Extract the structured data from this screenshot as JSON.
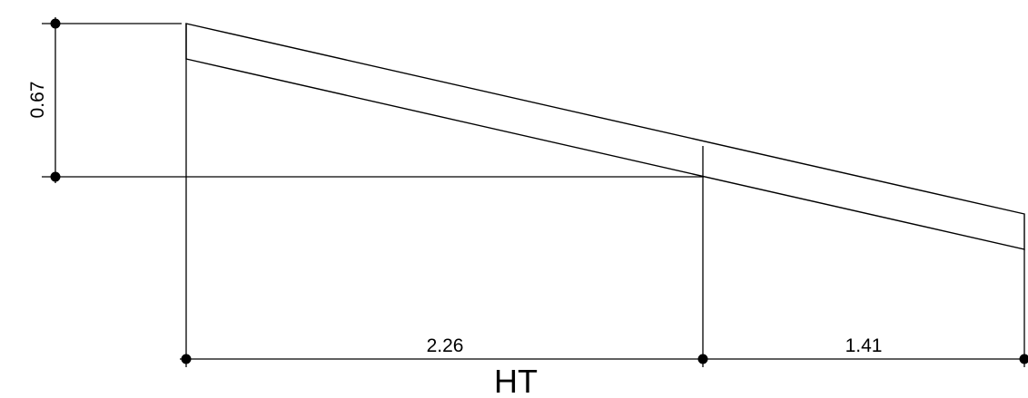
{
  "drawing": {
    "vertical_dimension": "0.67",
    "horizontal_dimensions": [
      "2.26",
      "1.41"
    ],
    "title": "HT"
  },
  "colors": {
    "line": "#000000",
    "background": "#ffffff"
  }
}
